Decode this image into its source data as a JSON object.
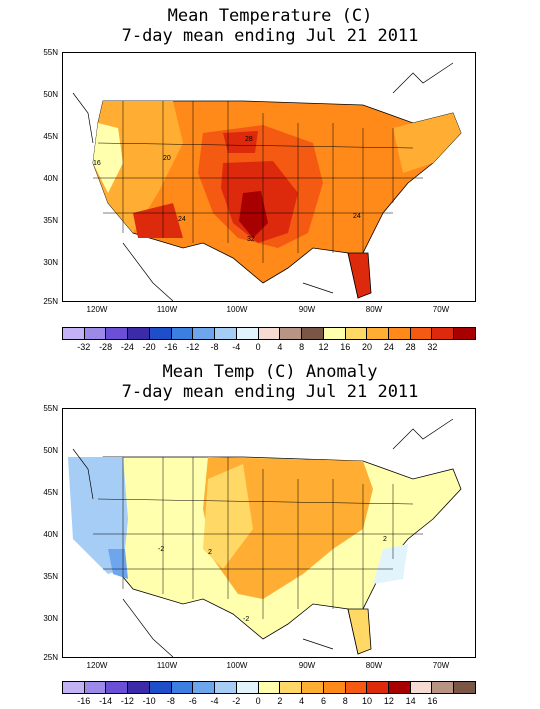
{
  "panels": [
    {
      "title_line1": "Mean Temperature (C)",
      "title_line2": "7-day mean ending Jul 21 2011",
      "lat_labels": [
        "55N",
        "50N",
        "45N",
        "40N",
        "35N",
        "30N",
        "25N"
      ],
      "lon_labels": [
        "120W",
        "110W",
        "100W",
        "90W",
        "80W",
        "70W"
      ],
      "contour_labels": [
        "16",
        "20",
        "28",
        "24",
        "24",
        "32"
      ],
      "legend_colors": [
        "#c3b3f5",
        "#9b8ae8",
        "#6b4fd6",
        "#3c2ba8",
        "#1f4fc8",
        "#3b7fe0",
        "#6ea6ee",
        "#a5cdf5",
        "#e2f4fb",
        "#f6dcd0",
        "#b89484",
        "#7a5647",
        "#ffffae",
        "#ffd866",
        "#ffad33",
        "#ff8a1a",
        "#f55a12",
        "#de2a0c",
        "#a80000"
      ],
      "legend_ticks": [
        "-32",
        "-28",
        "-24",
        "-20",
        "-16",
        "-12",
        "-8",
        "-4",
        "0",
        "4",
        "8",
        "12",
        "16",
        "20",
        "24",
        "28",
        "32"
      ]
    },
    {
      "title_line1": "Mean Temp (C) Anomaly",
      "title_line2": "7-day mean ending Jul 21 2011",
      "lat_labels": [
        "55N",
        "50N",
        "45N",
        "40N",
        "35N",
        "30N",
        "25N"
      ],
      "lon_labels": [
        "120W",
        "110W",
        "100W",
        "90W",
        "80W",
        "70W"
      ],
      "contour_labels": [
        "-2",
        "2",
        "-2",
        "2"
      ],
      "legend_colors": [
        "#c3b3f5",
        "#9b8ae8",
        "#6b4fd6",
        "#3c2ba8",
        "#1f4fc8",
        "#3b7fe0",
        "#6ea6ee",
        "#a5cdf5",
        "#e2f4fb",
        "#ffffae",
        "#ffd866",
        "#ffad33",
        "#ff8a1a",
        "#f55a12",
        "#de2a0c",
        "#a80000",
        "#f6dcd0",
        "#b89484",
        "#7a5647"
      ],
      "legend_ticks": [
        "-16",
        "-14",
        "-12",
        "-10",
        "-8",
        "-6",
        "-4",
        "-2",
        "0",
        "2",
        "4",
        "6",
        "8",
        "10",
        "12",
        "14",
        "16"
      ]
    }
  ]
}
